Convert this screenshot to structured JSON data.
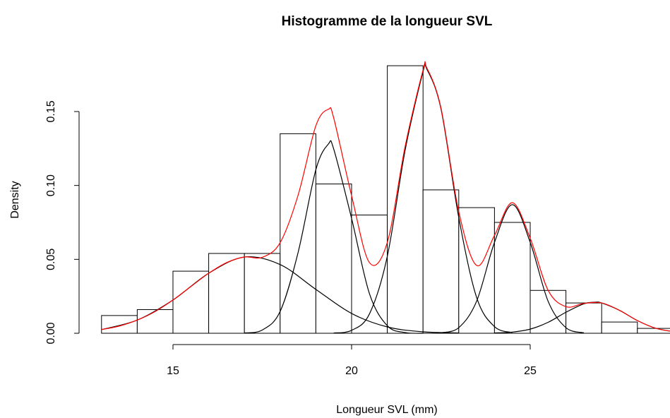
{
  "chart_data": {
    "type": "histogram",
    "title": "Histogramme de la longueur SVL",
    "xlabel": "Longueur SVL (mm)",
    "ylabel": "Density",
    "bins": [
      13,
      14,
      15,
      16,
      17,
      18,
      19,
      20,
      21,
      22,
      23,
      24,
      25,
      26,
      27,
      28,
      29
    ],
    "values": [
      0.012,
      0.016,
      0.042,
      0.054,
      0.054,
      0.135,
      0.101,
      0.08,
      0.181,
      0.097,
      0.085,
      0.075,
      0.029,
      0.0205,
      0.0076,
      0.0033
    ],
    "color": "#ffffff",
    "edgecolor": "#000000",
    "series": [
      {
        "color": "#000000",
        "x": [
          13,
          14,
          15,
          16,
          17,
          18,
          19,
          20,
          21,
          22,
          23
        ],
        "values": [
          0.0025,
          0.0089,
          0.0225,
          0.0406,
          0.0516,
          0.0465,
          0.0297,
          0.0134,
          0.0043,
          0.001,
          0.0002
        ]
      },
      {
        "color": "#000000",
        "x": [
          17,
          17.5,
          18,
          18.5,
          19,
          19.35,
          19.5,
          20,
          20.5,
          21,
          21.5,
          22
        ],
        "values": [
          0.0002,
          0.0022,
          0.0148,
          0.0544,
          0.1107,
          0.128,
          0.1246,
          0.0777,
          0.0268,
          0.0051,
          0.0005,
          0
        ]
      },
      {
        "color": "#000000",
        "x": [
          19.5,
          20,
          20.5,
          21,
          21.5,
          22,
          22.1,
          22.5,
          23,
          23.5,
          24,
          24.5
        ],
        "values": [
          0.0002,
          0.002,
          0.0131,
          0.0521,
          0.124,
          0.177,
          0.179,
          0.152,
          0.0783,
          0.0242,
          0.0045,
          0.0005
        ]
      },
      {
        "color": "#000000",
        "x": [
          22.5,
          23,
          23.5,
          24,
          24.5,
          25,
          25.5,
          26,
          26.5
        ],
        "values": [
          0.0003,
          0.0038,
          0.0217,
          0.0615,
          0.087,
          0.0615,
          0.0217,
          0.0038,
          0.0003
        ]
      },
      {
        "color": "#000000",
        "x": [
          24,
          24.5,
          25,
          25.5,
          26,
          26.5,
          26.8,
          27,
          27.5,
          28,
          28.5,
          29
        ],
        "values": [
          0.0002,
          0.0008,
          0.0028,
          0.0074,
          0.0142,
          0.0199,
          0.021,
          0.0205,
          0.0155,
          0.0086,
          0.0035,
          0.0011
        ]
      },
      {
        "color": "#ff0000",
        "x": [
          13,
          13.5,
          14,
          14.5,
          15,
          15.5,
          16,
          16.5,
          17,
          17.5,
          18,
          18.5,
          19,
          19.35,
          19.5,
          20,
          20.5,
          21,
          21.5,
          22,
          22.1,
          22.5,
          23,
          23.5,
          24,
          24.5,
          25,
          25.5,
          26,
          26.5,
          27,
          27.5,
          28,
          28.5,
          29
        ],
        "values": [
          0.0025,
          0.0049,
          0.0089,
          0.0147,
          0.0225,
          0.0316,
          0.0406,
          0.0478,
          0.0516,
          0.0514,
          0.0613,
          0.0932,
          0.1404,
          0.1515,
          0.1456,
          0.0931,
          0.0478,
          0.0615,
          0.1266,
          0.178,
          0.1798,
          0.1527,
          0.0823,
          0.0459,
          0.0662,
          0.0883,
          0.0643,
          0.0291,
          0.018,
          0.0202,
          0.0205,
          0.0155,
          0.0086,
          0.0035,
          0.0011
        ]
      }
    ],
    "xlim": [
      12.36,
      29.64
    ],
    "ylim": [
      -0.0072,
      0.1882
    ],
    "xticks": [
      15,
      20,
      25
    ],
    "yticks": [
      {
        "value": 0,
        "label": "0.00"
      },
      {
        "value": 0.05,
        "label": "0.05"
      },
      {
        "value": 0.1,
        "label": "0.10"
      },
      {
        "value": 0.15,
        "label": "0.15"
      }
    ],
    "grid": false
  }
}
